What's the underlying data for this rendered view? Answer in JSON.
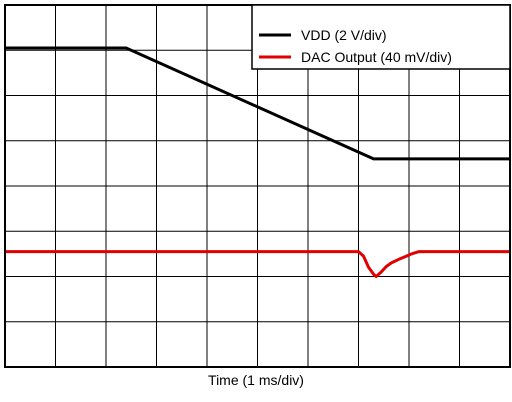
{
  "chart_data": {
    "type": "line",
    "title": "",
    "xlabel": "Time (1 ms/div)",
    "ylabel": "",
    "grid": true,
    "legend_position": "top-right",
    "x_divisions": 10,
    "y_divisions": 8,
    "xlim": [
      0,
      10
    ],
    "ylim": [
      0,
      8
    ],
    "series": [
      {
        "name": "VDD (2 V/div)",
        "color": "#000000",
        "x": [
          0,
          2.4,
          7.3,
          10
        ],
        "y": [
          7.05,
          7.05,
          4.6,
          4.6
        ]
      },
      {
        "name": "DAC Output (40 mV/div)",
        "color": "#e00000",
        "x": [
          0,
          7.0,
          7.1,
          7.2,
          7.3,
          7.35,
          7.45,
          7.55,
          7.65,
          7.8,
          7.95,
          8.05,
          8.2,
          10
        ],
        "y": [
          2.55,
          2.55,
          2.45,
          2.2,
          2.05,
          2.0,
          2.1,
          2.22,
          2.3,
          2.38,
          2.45,
          2.5,
          2.55,
          2.55
        ]
      }
    ]
  }
}
